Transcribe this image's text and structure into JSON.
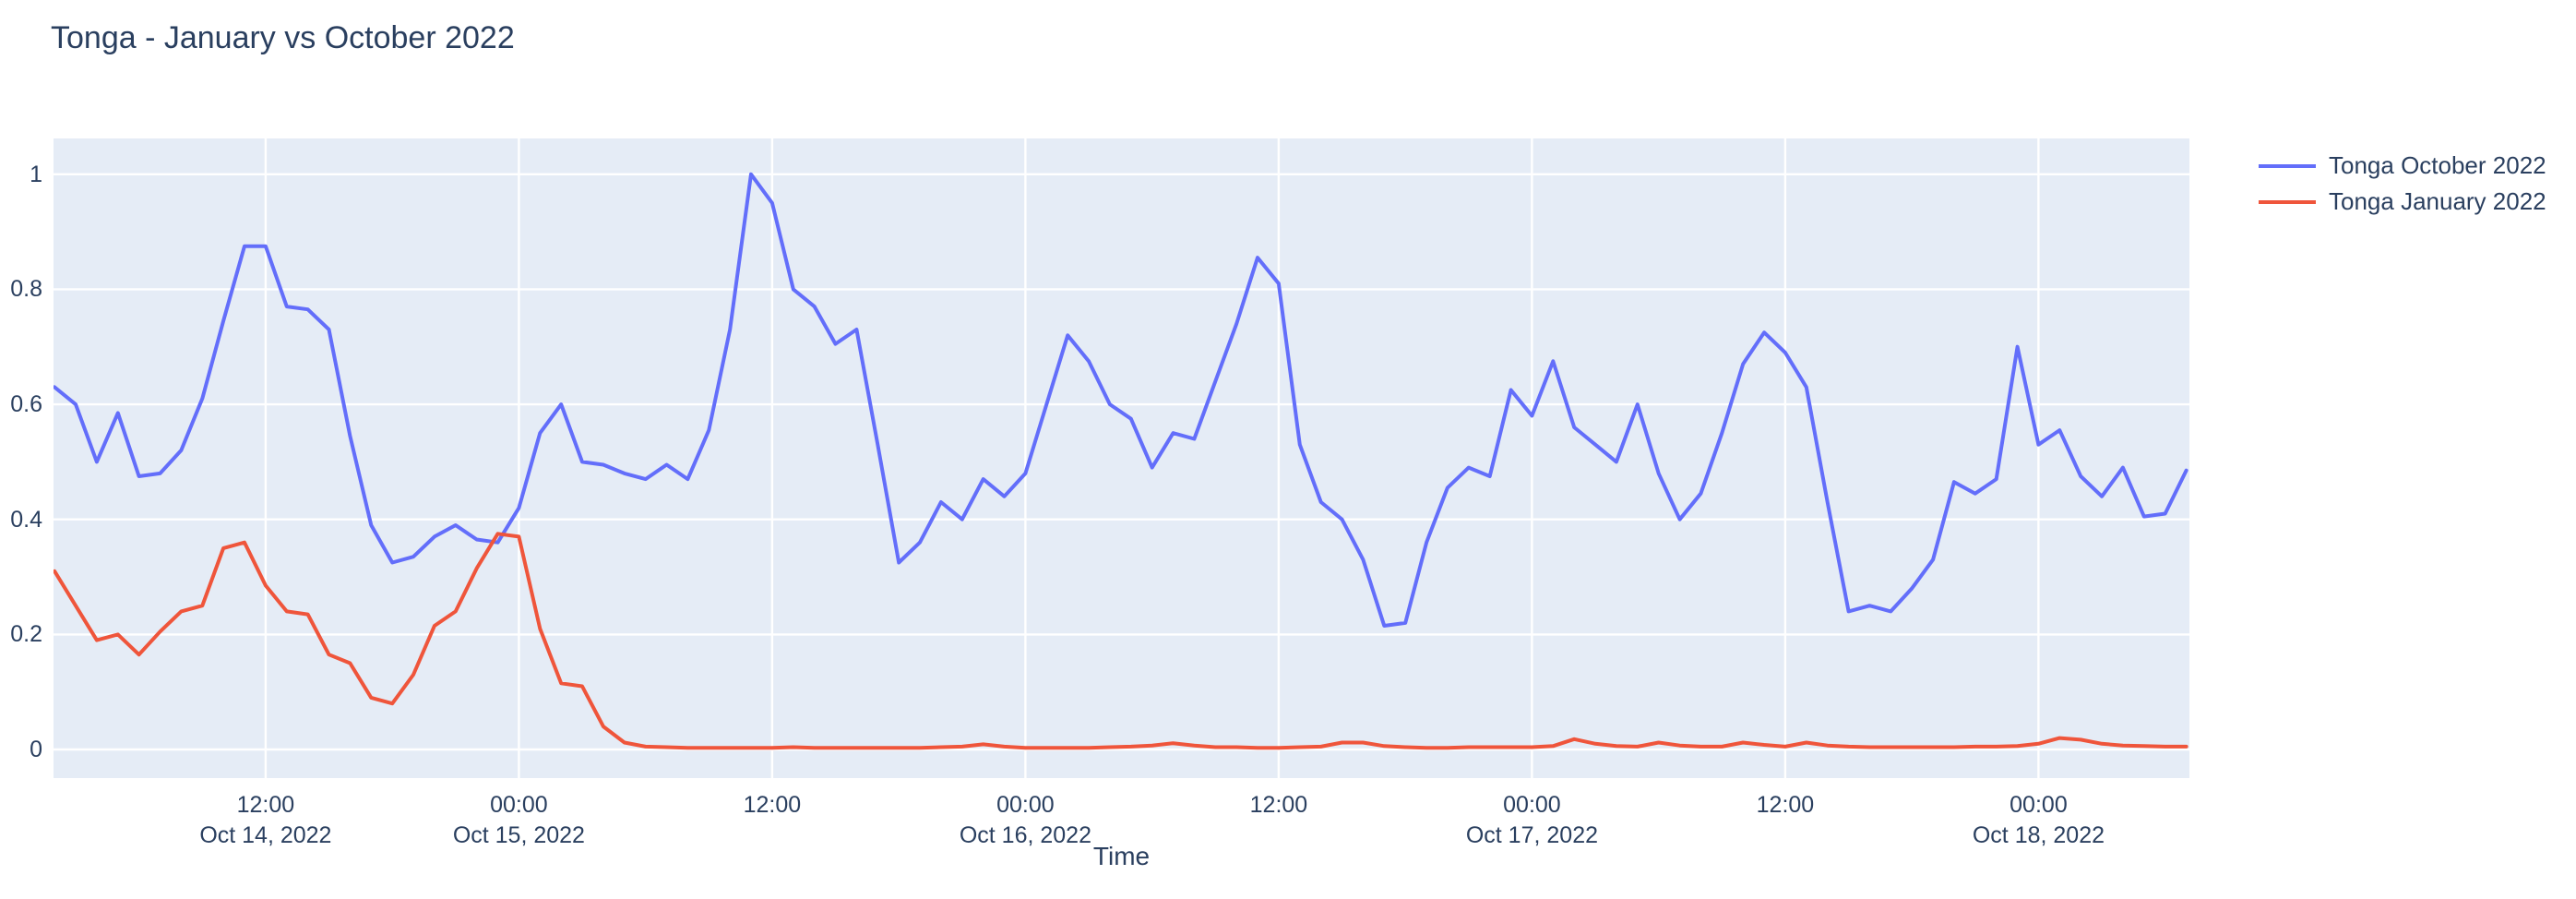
{
  "title": "Tonga - January vs October 2022",
  "chart_data": {
    "type": "line",
    "title": "Tonga - January vs October 2022",
    "xlabel": "Time",
    "ylabel": "",
    "grid": true,
    "legend_position": "right",
    "plot_bg": "#e5ecf6",
    "grid_color": "#ffffff",
    "text_color": "#2a3f5f",
    "x_start": "2022-10-14 02:00",
    "x_interval_hours": 1,
    "x_axis": {
      "range_hours": [
        -0.05,
        101.15
      ],
      "ticks": [
        {
          "hour": 10,
          "time": "12:00",
          "date": "Oct 14, 2022"
        },
        {
          "hour": 22,
          "time": "00:00",
          "date": "Oct 15, 2022"
        },
        {
          "hour": 34,
          "time": "12:00",
          "date": ""
        },
        {
          "hour": 46,
          "time": "00:00",
          "date": "Oct 16, 2022"
        },
        {
          "hour": 58,
          "time": "12:00",
          "date": ""
        },
        {
          "hour": 70,
          "time": "00:00",
          "date": "Oct 17, 2022"
        },
        {
          "hour": 82,
          "time": "12:00",
          "date": ""
        },
        {
          "hour": 94,
          "time": "00:00",
          "date": "Oct 18, 2022"
        }
      ]
    },
    "y_axis": {
      "range": [
        -0.0497,
        1.0622
      ],
      "tick_values": [
        0,
        0.2,
        0.4,
        0.6,
        0.8,
        1
      ],
      "tick_labels": [
        "0",
        "0.2",
        "0.4",
        "0.6",
        "0.8",
        "1"
      ]
    },
    "series": [
      {
        "name": "Tonga October 2022",
        "color": "#636efa",
        "values": [
          0.63,
          0.6,
          0.5,
          0.585,
          0.475,
          0.48,
          0.52,
          0.61,
          0.745,
          0.875,
          0.875,
          0.77,
          0.765,
          0.73,
          0.545,
          0.39,
          0.325,
          0.335,
          0.37,
          0.39,
          0.365,
          0.36,
          0.42,
          0.55,
          0.6,
          0.5,
          0.495,
          0.48,
          0.47,
          0.495,
          0.47,
          0.555,
          0.73,
          1.0,
          0.95,
          0.8,
          0.77,
          0.705,
          0.73,
          0.53,
          0.325,
          0.36,
          0.43,
          0.4,
          0.47,
          0.44,
          0.48,
          0.6,
          0.72,
          0.675,
          0.6,
          0.575,
          0.49,
          0.55,
          0.54,
          0.64,
          0.74,
          0.855,
          0.81,
          0.53,
          0.43,
          0.4,
          0.33,
          0.215,
          0.22,
          0.36,
          0.455,
          0.49,
          0.475,
          0.625,
          0.58,
          0.675,
          0.56,
          0.53,
          0.5,
          0.6,
          0.48,
          0.4,
          0.445,
          0.55,
          0.67,
          0.725,
          0.69,
          0.63,
          0.43,
          0.24,
          0.25,
          0.24,
          0.28,
          0.33,
          0.465,
          0.445,
          0.47,
          0.7,
          0.53,
          0.555,
          0.475,
          0.44,
          0.49,
          0.405,
          0.41,
          0.485
        ]
      },
      {
        "name": "Tonga January 2022",
        "color": "#ef553b",
        "values": [
          0.31,
          0.25,
          0.19,
          0.2,
          0.165,
          0.205,
          0.24,
          0.25,
          0.35,
          0.36,
          0.285,
          0.24,
          0.235,
          0.165,
          0.15,
          0.09,
          0.08,
          0.13,
          0.215,
          0.24,
          0.315,
          0.375,
          0.37,
          0.21,
          0.115,
          0.11,
          0.04,
          0.012,
          0.005,
          0.004,
          0.003,
          0.003,
          0.003,
          0.003,
          0.003,
          0.004,
          0.003,
          0.003,
          0.003,
          0.003,
          0.003,
          0.003,
          0.004,
          0.005,
          0.009,
          0.005,
          0.003,
          0.003,
          0.003,
          0.003,
          0.004,
          0.005,
          0.007,
          0.011,
          0.007,
          0.004,
          0.004,
          0.003,
          0.003,
          0.004,
          0.005,
          0.012,
          0.012,
          0.006,
          0.004,
          0.003,
          0.003,
          0.004,
          0.004,
          0.004,
          0.004,
          0.006,
          0.018,
          0.01,
          0.006,
          0.005,
          0.012,
          0.007,
          0.005,
          0.005,
          0.012,
          0.008,
          0.005,
          0.012,
          0.007,
          0.005,
          0.004,
          0.004,
          0.004,
          0.004,
          0.004,
          0.005,
          0.005,
          0.006,
          0.01,
          0.02,
          0.017,
          0.01,
          0.007,
          0.006,
          0.005,
          0.005
        ]
      }
    ]
  }
}
